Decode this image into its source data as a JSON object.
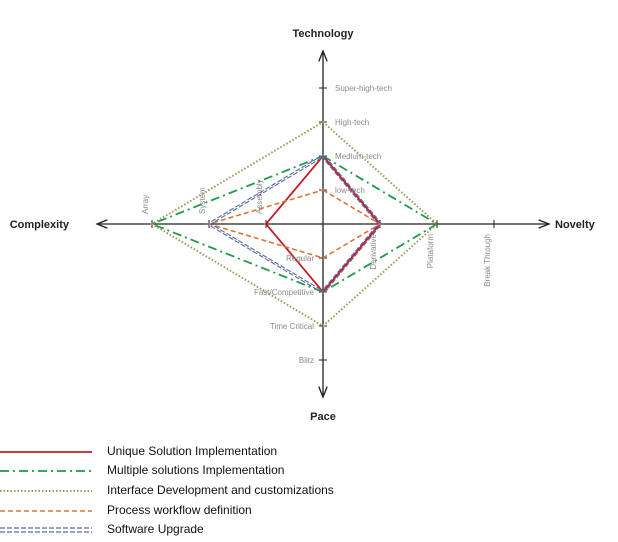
{
  "chart_data": {
    "type": "radar",
    "title": "",
    "axes": [
      {
        "name": "Technology",
        "direction": "up",
        "levels": [
          "low-tech",
          "Medium-tech",
          "High-tech",
          "Super-high-tech"
        ]
      },
      {
        "name": "Novelty",
        "direction": "right",
        "levels": [
          "Derivative",
          "Plataform",
          "Break Through"
        ]
      },
      {
        "name": "Pace",
        "direction": "down",
        "levels": [
          "Regular",
          "Fast/Competitive",
          "Time Critical",
          "Blitz"
        ]
      },
      {
        "name": "Complexity",
        "direction": "left",
        "levels": [
          "Assembly",
          "System",
          "Array"
        ]
      }
    ],
    "series": [
      {
        "name": "Unique Solution Implementation",
        "color": "#c0202a",
        "dash": "solid",
        "values": {
          "Technology": "Medium-tech",
          "Novelty": "Derivative",
          "Pace": "Fast/Competitive",
          "Complexity": "Assembly"
        },
        "points": [
          2,
          1,
          2,
          1
        ]
      },
      {
        "name": "Multiple solutions Implementation",
        "color": "#1f9a4a",
        "dash": "dash-dot",
        "values": {
          "Technology": "Medium-tech",
          "Novelty": "Plataform",
          "Pace": "Fast/Competitive",
          "Complexity": "Array"
        },
        "points": [
          2,
          2,
          2,
          3
        ]
      },
      {
        "name": "Interface Development and customizations",
        "color": "#9a9a5a",
        "dash": "dotted",
        "values": {
          "Technology": "High-tech",
          "Novelty": "Plataform",
          "Pace": "Time Critical",
          "Complexity": "Array"
        },
        "points": [
          3,
          2,
          3,
          3
        ]
      },
      {
        "name": "Process workflow definition",
        "color": "#d9763a",
        "dash": "dashed",
        "values": {
          "Technology": "low-tech",
          "Novelty": "Derivative",
          "Pace": "Regular",
          "Complexity": "System"
        },
        "points": [
          1,
          1,
          1,
          2
        ]
      },
      {
        "name": "Software Upgrade",
        "color": "#5a6aa8",
        "dash": "double-dashed",
        "values": {
          "Technology": "Medium-tech",
          "Novelty": "Derivative",
          "Pace": "Fast/Competitive",
          "Complexity": "System"
        },
        "points": [
          2,
          1,
          2,
          2
        ]
      }
    ],
    "legend": "bottom-left",
    "grid": false
  }
}
